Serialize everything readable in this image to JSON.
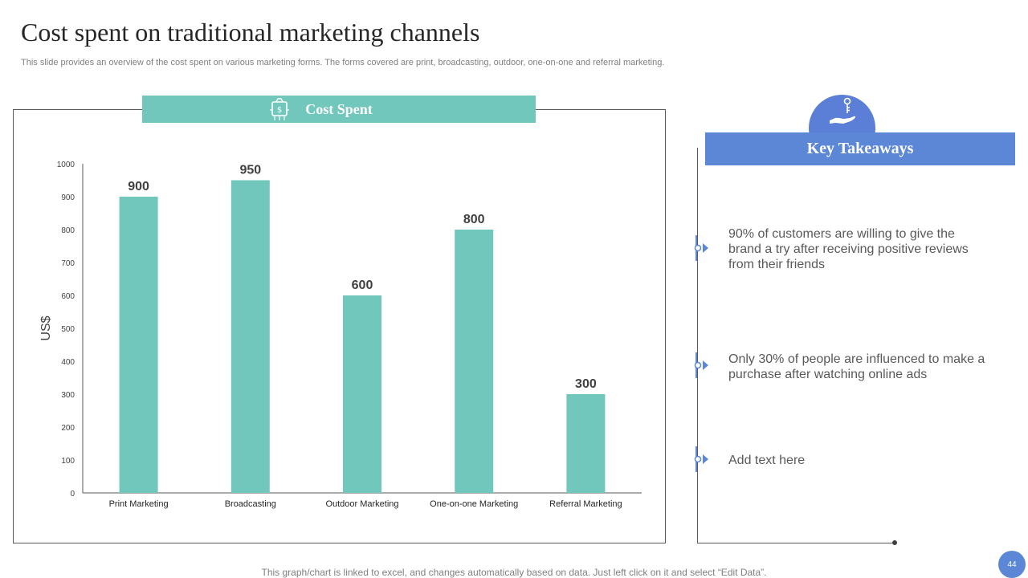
{
  "slide": {
    "title": "Cost spent on traditional marketing channels",
    "subtitle": "This slide provides an overview of the cost spent on various marketing forms. The forms covered are print, broadcasting, outdoor, one-on-one and referral marketing.",
    "footer": "This graph/chart is linked to excel,  and changes automatically based on data. Just left click on it and select “Edit Data”.",
    "page_number": "44"
  },
  "chart_header": {
    "label": "Cost Spent",
    "icon": "money-bag-icon",
    "color": "#72c7bc"
  },
  "chart_data": {
    "type": "bar",
    "categories": [
      "Print Marketing",
      "Broadcasting",
      "Outdoor Marketing",
      "One-on-one Marketing",
      "Referral Marketing"
    ],
    "values": [
      900,
      950,
      600,
      800,
      300
    ],
    "title": "",
    "xlabel": "",
    "ylabel": "US$",
    "ylim": [
      0,
      1000
    ],
    "yticks": [
      0,
      100,
      200,
      300,
      400,
      500,
      600,
      700,
      800,
      900,
      1000
    ],
    "bar_color": "#72c7bc",
    "grid": false,
    "legend": "none",
    "data_labels": true
  },
  "takeaways": {
    "header": "Key Takeaways",
    "icon": "hand-holding-key-icon",
    "color": "#5b87d6",
    "items": [
      {
        "text": "90% of customers are willing to give the brand a try  after receiving positive reviews from their friends"
      },
      {
        "text": "Only  30% of people are influenced to make a purchase after watching online ads"
      },
      {
        "text": "Add text here"
      }
    ]
  }
}
